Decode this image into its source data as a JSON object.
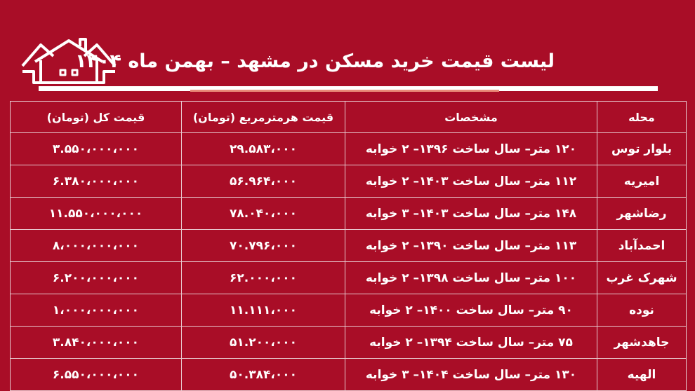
{
  "title": "لیست قیمت خرید مسکن در مشهد – بهمن ماه ۱۴۰۴",
  "colors": {
    "background": "#a90d27",
    "accent_rule": "#e98a78",
    "text": "#ffffff"
  },
  "logo_icon": "houses-icon",
  "table": {
    "headers": [
      "محله",
      "مشخصات",
      "قیمت هرمترمربع (تومان)",
      "قیمت کل (تومان)"
    ],
    "rows": [
      {
        "area": "بلوار توس",
        "spec": "۱۲۰ متر– سال ساخت ۱۳۹۶– ۲ خوابه",
        "ppm": "۲۹.۵۸۳،۰۰۰",
        "total": "۳.۵۵۰،۰۰۰،۰۰۰"
      },
      {
        "area": "امیریه",
        "spec": "۱۱۲ متر– سال ساخت ۱۴۰۳– ۲ خوابه",
        "ppm": "۵۶.۹۶۴،۰۰۰",
        "total": "۶.۳۸۰،۰۰۰،۰۰۰"
      },
      {
        "area": "رضاشهر",
        "spec": "۱۴۸ متر– سال ساخت ۱۴۰۳– ۳ خوابه",
        "ppm": "۷۸.۰۴۰،۰۰۰",
        "total": "۱۱.۵۵۰،۰۰۰،۰۰۰"
      },
      {
        "area": "احمدآباد",
        "spec": "۱۱۳ متر– سال ساخت ۱۳۹۰– ۲ خوابه",
        "ppm": "۷۰.۷۹۶،۰۰۰",
        "total": "۸،۰۰۰،۰۰۰،۰۰۰"
      },
      {
        "area": "شهرک غرب",
        "spec": "۱۰۰ متر– سال ساخت ۱۳۹۸– ۲ خوابه",
        "ppm": "۶۲.۰۰۰،۰۰۰",
        "total": "۶.۲۰۰،۰۰۰،۰۰۰"
      },
      {
        "area": "نوده",
        "spec": "۹۰ متر– سال ساخت ۱۴۰۰– ۲ خوابه",
        "ppm": "۱۱.۱۱۱،۰۰۰",
        "total": "۱،۰۰۰،۰۰۰،۰۰۰"
      },
      {
        "area": "جاهدشهر",
        "spec": "۷۵ متر– سال ساخت ۱۳۹۴– ۲ خوابه",
        "ppm": "۵۱.۲۰۰،۰۰۰",
        "total": "۳.۸۴۰،۰۰۰،۰۰۰"
      },
      {
        "area": "الهیه",
        "spec": "۱۳۰ متر– سال ساخت ۱۴۰۴– ۳ خوابه",
        "ppm": "۵۰.۳۸۴،۰۰۰",
        "total": "۶.۵۵۰،۰۰۰،۰۰۰"
      }
    ]
  }
}
